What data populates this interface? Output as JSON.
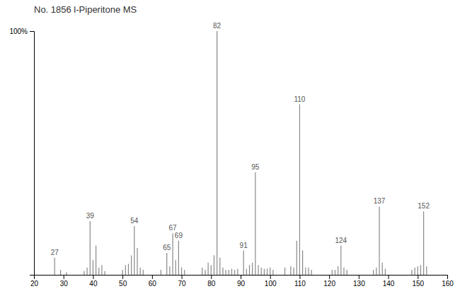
{
  "chart_data": {
    "type": "stem",
    "title": "No. 1856 l-Piperitone MS",
    "color": "#888888",
    "x": [
      27,
      29,
      31,
      37,
      38,
      39,
      40,
      41,
      42,
      43,
      44,
      50,
      51,
      52,
      53,
      54,
      55,
      56,
      57,
      63,
      65,
      66,
      67,
      68,
      69,
      70,
      71,
      77,
      78,
      79,
      80,
      81,
      82,
      83,
      84,
      85,
      86,
      87,
      88,
      89,
      91,
      92,
      93,
      94,
      95,
      96,
      97,
      98,
      99,
      100,
      101,
      105,
      107,
      108,
      109,
      110,
      111,
      112,
      113,
      114,
      121,
      122,
      123,
      124,
      125,
      126,
      135,
      136,
      137,
      138,
      139,
      148,
      149,
      150,
      151,
      152,
      153
    ],
    "values": [
      7.0,
      2.0,
      1.0,
      1.5,
      3.0,
      22.0,
      6.0,
      12.0,
      3.0,
      4.0,
      1.5,
      2.0,
      4.0,
      4.5,
      8.0,
      20.0,
      11.0,
      3.0,
      2.0,
      2.0,
      9.0,
      3.5,
      17.0,
      6.0,
      14.0,
      3.0,
      2.0,
      3.0,
      2.0,
      5.0,
      4.0,
      8.0,
      100.0,
      7.0,
      3.0,
      2.0,
      2.0,
      2.5,
      2.0,
      2.5,
      10.0,
      2.5,
      4.0,
      5.0,
      42.0,
      4.0,
      3.0,
      2.5,
      2.5,
      3.0,
      2.0,
      3.0,
      3.5,
      3.0,
      14.0,
      70.0,
      10.0,
      3.0,
      3.0,
      2.0,
      2.0,
      2.0,
      3.5,
      12.0,
      3.0,
      2.0,
      2.0,
      3.0,
      28.0,
      5.0,
      2.5,
      2.0,
      3.0,
      3.5,
      4.0,
      26.0,
      3.5
    ],
    "annotations": [
      {
        "x": 27,
        "text": "27"
      },
      {
        "x": 39,
        "text": "39"
      },
      {
        "x": 54,
        "text": "54"
      },
      {
        "x": 65,
        "text": "65"
      },
      {
        "x": 67,
        "text": "67"
      },
      {
        "x": 69,
        "text": "69"
      },
      {
        "x": 82,
        "text": "82"
      },
      {
        "x": 91,
        "text": "91"
      },
      {
        "x": 95,
        "text": "95"
      },
      {
        "x": 110,
        "text": "110"
      },
      {
        "x": 124,
        "text": "124"
      },
      {
        "x": 137,
        "text": "137"
      },
      {
        "x": 152,
        "text": "152"
      }
    ],
    "xlim": [
      20,
      160
    ],
    "xticks": [
      20,
      30,
      40,
      50,
      60,
      70,
      80,
      90,
      100,
      110,
      120,
      130,
      140,
      150,
      160
    ],
    "ylim": [
      0,
      100
    ],
    "yticks": [
      {
        "value": 100,
        "label": "100%"
      }
    ]
  }
}
